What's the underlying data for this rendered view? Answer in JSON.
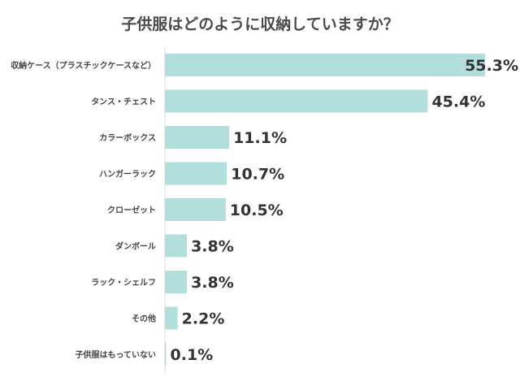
{
  "chart_data": {
    "type": "bar",
    "orientation": "horizontal",
    "title": "子供服はどのように収納していますか？",
    "categories": [
      "収納ケース（プラスチックケースなど）",
      "タンス・チェスト",
      "カラーボックス",
      "ハンガーラック",
      "クローゼット",
      "ダンボール",
      "ラック・シェルフ",
      "その他",
      "子供服はもっていない"
    ],
    "values": [
      55.3,
      45.4,
      11.1,
      10.7,
      10.5,
      3.8,
      3.8,
      2.2,
      0.1
    ],
    "value_labels": [
      "55.3%",
      "45.4%",
      "11.1%",
      "10.7%",
      "10.5%",
      "3.8%",
      "3.8%",
      "2.2%",
      "0.1%"
    ],
    "xlim": [
      0,
      55.3
    ],
    "grid": false,
    "bar_color": "#b2dfdb"
  }
}
